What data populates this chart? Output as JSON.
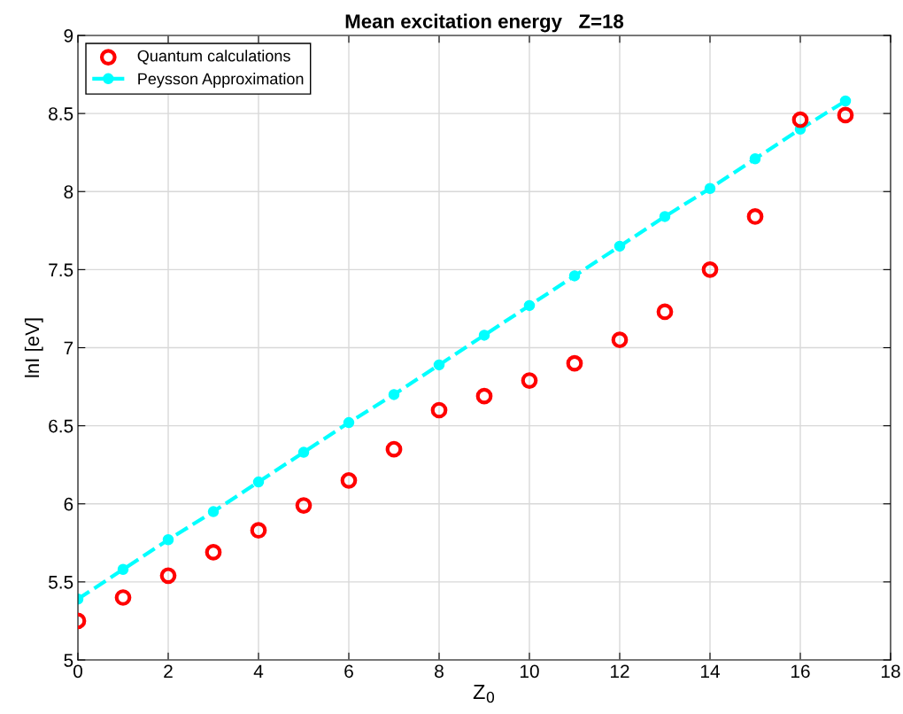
{
  "chart_data": {
    "type": "scatter",
    "title": "Mean excitation energy   Z=18",
    "xlabel": "Z$_{0}$",
    "ylabel": "lnI [eV]",
    "x": [
      0,
      1,
      2,
      3,
      4,
      5,
      6,
      7,
      8,
      9,
      10,
      11,
      12,
      13,
      14,
      15,
      16,
      17
    ],
    "series": [
      {
        "name": "Quantum calculations",
        "color": "#ff0000",
        "marker": "circle",
        "values": [
          5.25,
          5.4,
          5.54,
          5.69,
          5.83,
          5.99,
          6.15,
          6.35,
          6.6,
          6.69,
          6.79,
          6.9,
          7.05,
          7.23,
          7.5,
          7.84,
          8.46,
          8.49
        ]
      },
      {
        "name": "Peysson Approximation",
        "type": "line",
        "color": "#00ffff",
        "marker": "circle",
        "line_style": "dashed",
        "values": [
          5.39,
          5.58,
          5.77,
          5.95,
          6.14,
          6.33,
          6.52,
          6.7,
          6.89,
          7.08,
          7.27,
          7.46,
          7.65,
          7.84,
          8.02,
          8.21,
          8.4,
          8.58
        ]
      }
    ],
    "xlim": [
      0,
      18
    ],
    "xticks": [
      0,
      2,
      4,
      6,
      8,
      10,
      12,
      14,
      16,
      18
    ],
    "ylim": [
      5,
      9
    ],
    "yticks": [
      5,
      5.5,
      6,
      6.5,
      7,
      7.5,
      8,
      8.5,
      9
    ],
    "grid": true,
    "legend": "top left"
  }
}
